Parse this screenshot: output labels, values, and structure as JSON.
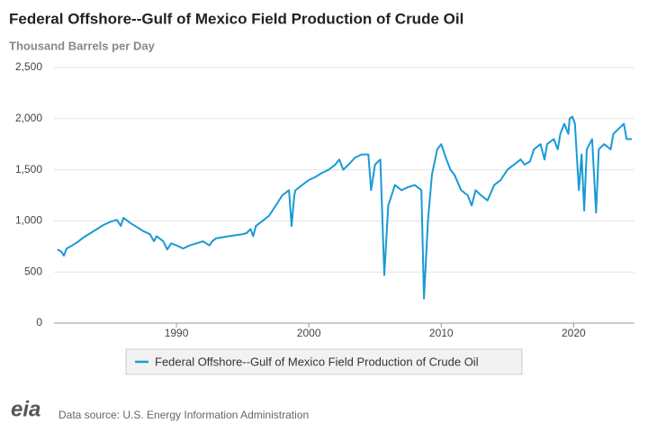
{
  "chart_data": {
    "type": "line",
    "title": "Federal Offshore--Gulf of Mexico Field Production of Crude Oil",
    "y_label": "Thousand Barrels per Day",
    "source": "Data source: U.S. Energy Information Administration",
    "logo": "eia",
    "grid": true,
    "legend": "bottom",
    "xlim": [
      1980.75,
      2024.6
    ],
    "xticks": [
      1990,
      2000,
      2010,
      2020
    ],
    "ylim": [
      0,
      2500
    ],
    "yticks": [
      0,
      500,
      {
        "value": 1000,
        "label": "1,000"
      },
      {
        "value": 1500,
        "label": "1,500"
      },
      {
        "value": 2000,
        "label": "2,000"
      },
      {
        "value": 2500,
        "label": "2,500"
      }
    ],
    "x": [
      1981.0,
      1981.3,
      1981.5,
      1981.7,
      1982.0,
      1982.5,
      1983.0,
      1983.5,
      1984.0,
      1984.5,
      1985.0,
      1985.5,
      1985.8,
      1986.0,
      1986.5,
      1987.0,
      1987.5,
      1988.0,
      1988.3,
      1988.5,
      1989.0,
      1989.3,
      1989.6,
      1990.0,
      1990.5,
      1991.0,
      1991.5,
      1992.0,
      1992.5,
      1992.7,
      1993.0,
      1993.5,
      1994.0,
      1994.5,
      1995.0,
      1995.3,
      1995.6,
      1995.8,
      1996.0,
      1996.5,
      1997.0,
      1997.5,
      1998.0,
      1998.5,
      1998.7,
      1998.9,
      1999.0,
      1999.5,
      2000.0,
      2000.5,
      2001.0,
      2001.5,
      2002.0,
      2002.3,
      2002.6,
      2003.0,
      2003.5,
      2004.0,
      2004.5,
      2004.7,
      2005.0,
      2005.4,
      2005.7,
      2006.0,
      2006.5,
      2007.0,
      2007.5,
      2008.0,
      2008.5,
      2008.7,
      2009.0,
      2009.3,
      2009.7,
      2010.0,
      2010.4,
      2010.7,
      2011.0,
      2011.5,
      2012.0,
      2012.3,
      2012.6,
      2013.0,
      2013.5,
      2014.0,
      2014.5,
      2015.0,
      2015.5,
      2016.0,
      2016.3,
      2016.7,
      2017.0,
      2017.5,
      2017.8,
      2018.0,
      2018.5,
      2018.8,
      2019.0,
      2019.3,
      2019.6,
      2019.7,
      2019.9,
      2020.1,
      2020.4,
      2020.6,
      2020.8,
      2021.0,
      2021.4,
      2021.7,
      2021.9,
      2022.3,
      2022.8,
      2023.0,
      2023.4,
      2023.8,
      2024.0,
      2024.4
    ],
    "series": [
      {
        "name": "Federal Offshore--Gulf of Mexico Field Production of Crude Oil",
        "color": "#1a9ad6",
        "values": [
          720,
          700,
          660,
          730,
          750,
          790,
          840,
          880,
          920,
          960,
          990,
          1010,
          950,
          1030,
          980,
          940,
          900,
          870,
          800,
          850,
          800,
          720,
          780,
          760,
          730,
          760,
          780,
          800,
          760,
          800,
          830,
          840,
          850,
          860,
          870,
          880,
          920,
          850,
          950,
          1000,
          1050,
          1150,
          1250,
          1300,
          950,
          1250,
          1300,
          1350,
          1400,
          1430,
          1470,
          1500,
          1550,
          1600,
          1500,
          1550,
          1620,
          1650,
          1650,
          1300,
          1550,
          1600,
          470,
          1150,
          1350,
          1300,
          1330,
          1350,
          1300,
          240,
          1000,
          1450,
          1700,
          1750,
          1600,
          1500,
          1450,
          1300,
          1250,
          1150,
          1300,
          1250,
          1200,
          1350,
          1400,
          1500,
          1550,
          1600,
          1550,
          1580,
          1700,
          1750,
          1600,
          1750,
          1800,
          1700,
          1850,
          1950,
          1850,
          2000,
          2020,
          1950,
          1300,
          1650,
          1100,
          1700,
          1800,
          1080,
          1700,
          1750,
          1700,
          1850,
          1900,
          1950,
          1800,
          1800
        ]
      }
    ]
  }
}
